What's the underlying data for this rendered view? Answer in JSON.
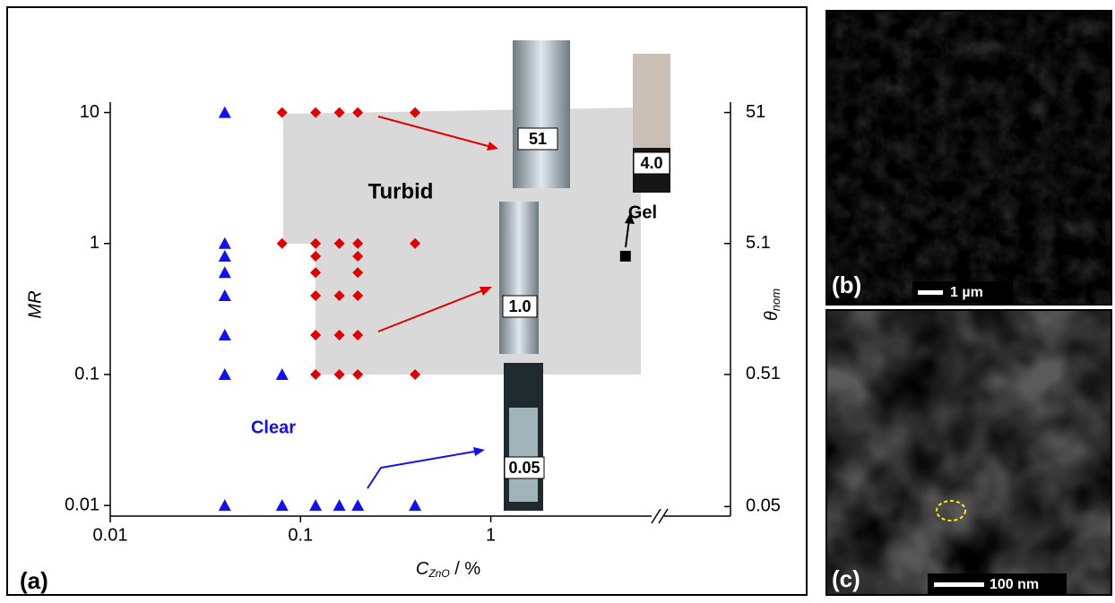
{
  "chart_data": {
    "type": "scatter",
    "xlog": true,
    "ylog": true,
    "xlabel": {
      "main": "C",
      "sub": "ZnO",
      "rest": " / %"
    },
    "ylabel": "MR",
    "y2label": {
      "main": "θ",
      "sub": "nom"
    },
    "xlim": [
      0.01,
      7
    ],
    "ylim": [
      0.0083,
      12
    ],
    "y2lim": [
      0.0423,
      61.2
    ],
    "xticks": [
      0.01,
      0.1,
      1
    ],
    "yticks": [
      0.01,
      0.1,
      1,
      10
    ],
    "y2ticks": [
      0.05,
      0.51,
      5.1,
      51
    ],
    "series": [
      {
        "name": "Clear",
        "color": "#1010f0",
        "marker": "triangle",
        "x": [
          0.04,
          0.04,
          0.04,
          0.04,
          0.04,
          0.04,
          0.04,
          0.04,
          0.08,
          0.08,
          0.12,
          0.16,
          0.2,
          0.4
        ],
        "values": [
          10,
          1,
          0.8,
          0.6,
          0.4,
          0.2,
          0.1,
          0.01,
          0.1,
          0.01,
          0.01,
          0.01,
          0.01,
          0.01
        ]
      },
      {
        "name": "Turbid",
        "color": "#e00000",
        "marker": "diamond",
        "x": [
          0.08,
          0.08,
          0.12,
          0.12,
          0.12,
          0.12,
          0.12,
          0.12,
          0.12,
          0.16,
          0.16,
          0.16,
          0.16,
          0.16,
          0.2,
          0.2,
          0.2,
          0.2,
          0.2,
          0.2,
          0.2,
          0.4,
          0.4,
          0.4
        ],
        "values": [
          10,
          1,
          10,
          1,
          0.8,
          0.6,
          0.4,
          0.2,
          0.1,
          10,
          1,
          0.4,
          0.2,
          0.1,
          10,
          1,
          0.8,
          0.6,
          0.4,
          0.2,
          0.1,
          10,
          1,
          0.1
        ]
      },
      {
        "name": "Gel",
        "color": "#000000",
        "marker": "square",
        "x": [
          5.1
        ],
        "values": [
          0.8
        ]
      }
    ],
    "vials": [
      "51",
      "1.0",
      "0.05",
      "4.0"
    ],
    "panel_label": "(a)"
  },
  "panels": {
    "b": {
      "label": "(b)",
      "scale": "1 µm"
    },
    "c": {
      "label": "(c)",
      "scale": "100 nm"
    }
  }
}
